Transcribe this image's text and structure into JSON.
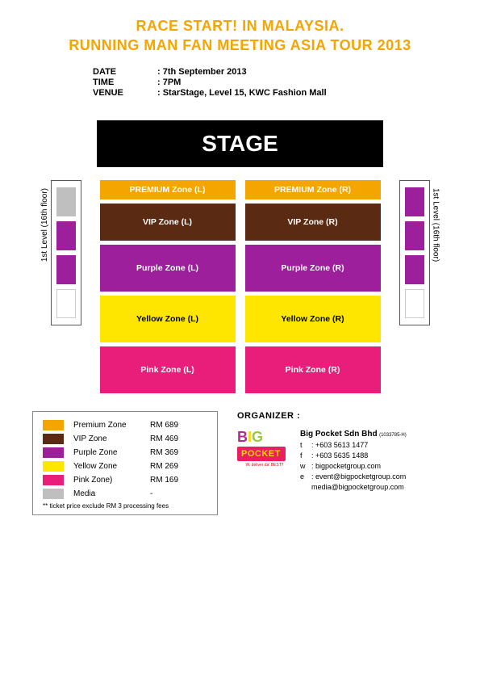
{
  "title_line1": "RACE START! IN MALAYSIA.",
  "title_line2": "RUNNING MAN FAN MEETING ASIA TOUR 2013",
  "title_color": "#f5a500",
  "info": {
    "date_label": "DATE",
    "date_value": ": 7th September 2013",
    "time_label": "TIME",
    "time_value": ": 7PM",
    "venue_label": "VENUE",
    "venue_value": ": StarStage, Level 15, KWC Fashion Mall"
  },
  "stage_label": "STAGE",
  "side_label": "1st Level (16th floor)",
  "colors": {
    "premium": "#f5a500",
    "vip": "#5b2a12",
    "purple": "#9e1f9c",
    "yellow": "#ffe600",
    "pink": "#e91e7a",
    "media": "#bfbfbf",
    "side_border": "#666666"
  },
  "side_boxes": {
    "left": [
      "#bfbfbf",
      "#9e1f9c",
      "#9e1f9c",
      "#ffffff"
    ],
    "right": [
      "#9e1f9c",
      "#9e1f9c",
      "#9e1f9c",
      "#ffffff"
    ]
  },
  "zones": {
    "premium_l": "PREMIUM Zone (L)",
    "premium_r": "PREMIUM Zone (R)",
    "vip_l": "VIP Zone (L)",
    "vip_r": "VIP Zone (R)",
    "purple_l": "Purple Zone (L)",
    "purple_r": "Purple Zone (R)",
    "yellow_l": "Yellow Zone (L)",
    "yellow_r": "Yellow Zone (R)",
    "pink_l": "Pink Zone (L)",
    "pink_r": "Pink Zone (R)"
  },
  "legend": {
    "rows": [
      {
        "name": "Premium Zone",
        "price": "RM 689",
        "color": "#f5a500"
      },
      {
        "name": "VIP Zone",
        "price": "RM 469",
        "color": "#5b2a12"
      },
      {
        "name": "Purple Zone",
        "price": "RM 369",
        "color": "#9e1f9c"
      },
      {
        "name": "Yellow Zone",
        "price": "RM 269",
        "color": "#ffe600"
      },
      {
        "name": "Pink Zone)",
        "price": "RM  169",
        "color": "#e91e7a"
      },
      {
        "name": "Media",
        "price": "-",
        "color": "#bfbfbf"
      }
    ],
    "note": "** ticket price exclude RM 3 processing fees"
  },
  "organizer": {
    "heading": "ORGANIZER :",
    "logo_tagline": "W. deliver da' BEST!!",
    "company": "Big Pocket Sdn Bhd",
    "reg": "(1033785-H)",
    "contacts": {
      "t": ": +603 5613 1477",
      "f": ": +603 5635 1488",
      "w": ": bigpocketgroup.com",
      "e1": ": event@bigpocketgroup.com",
      "e2": "  media@bigpocketgroup.com"
    }
  }
}
